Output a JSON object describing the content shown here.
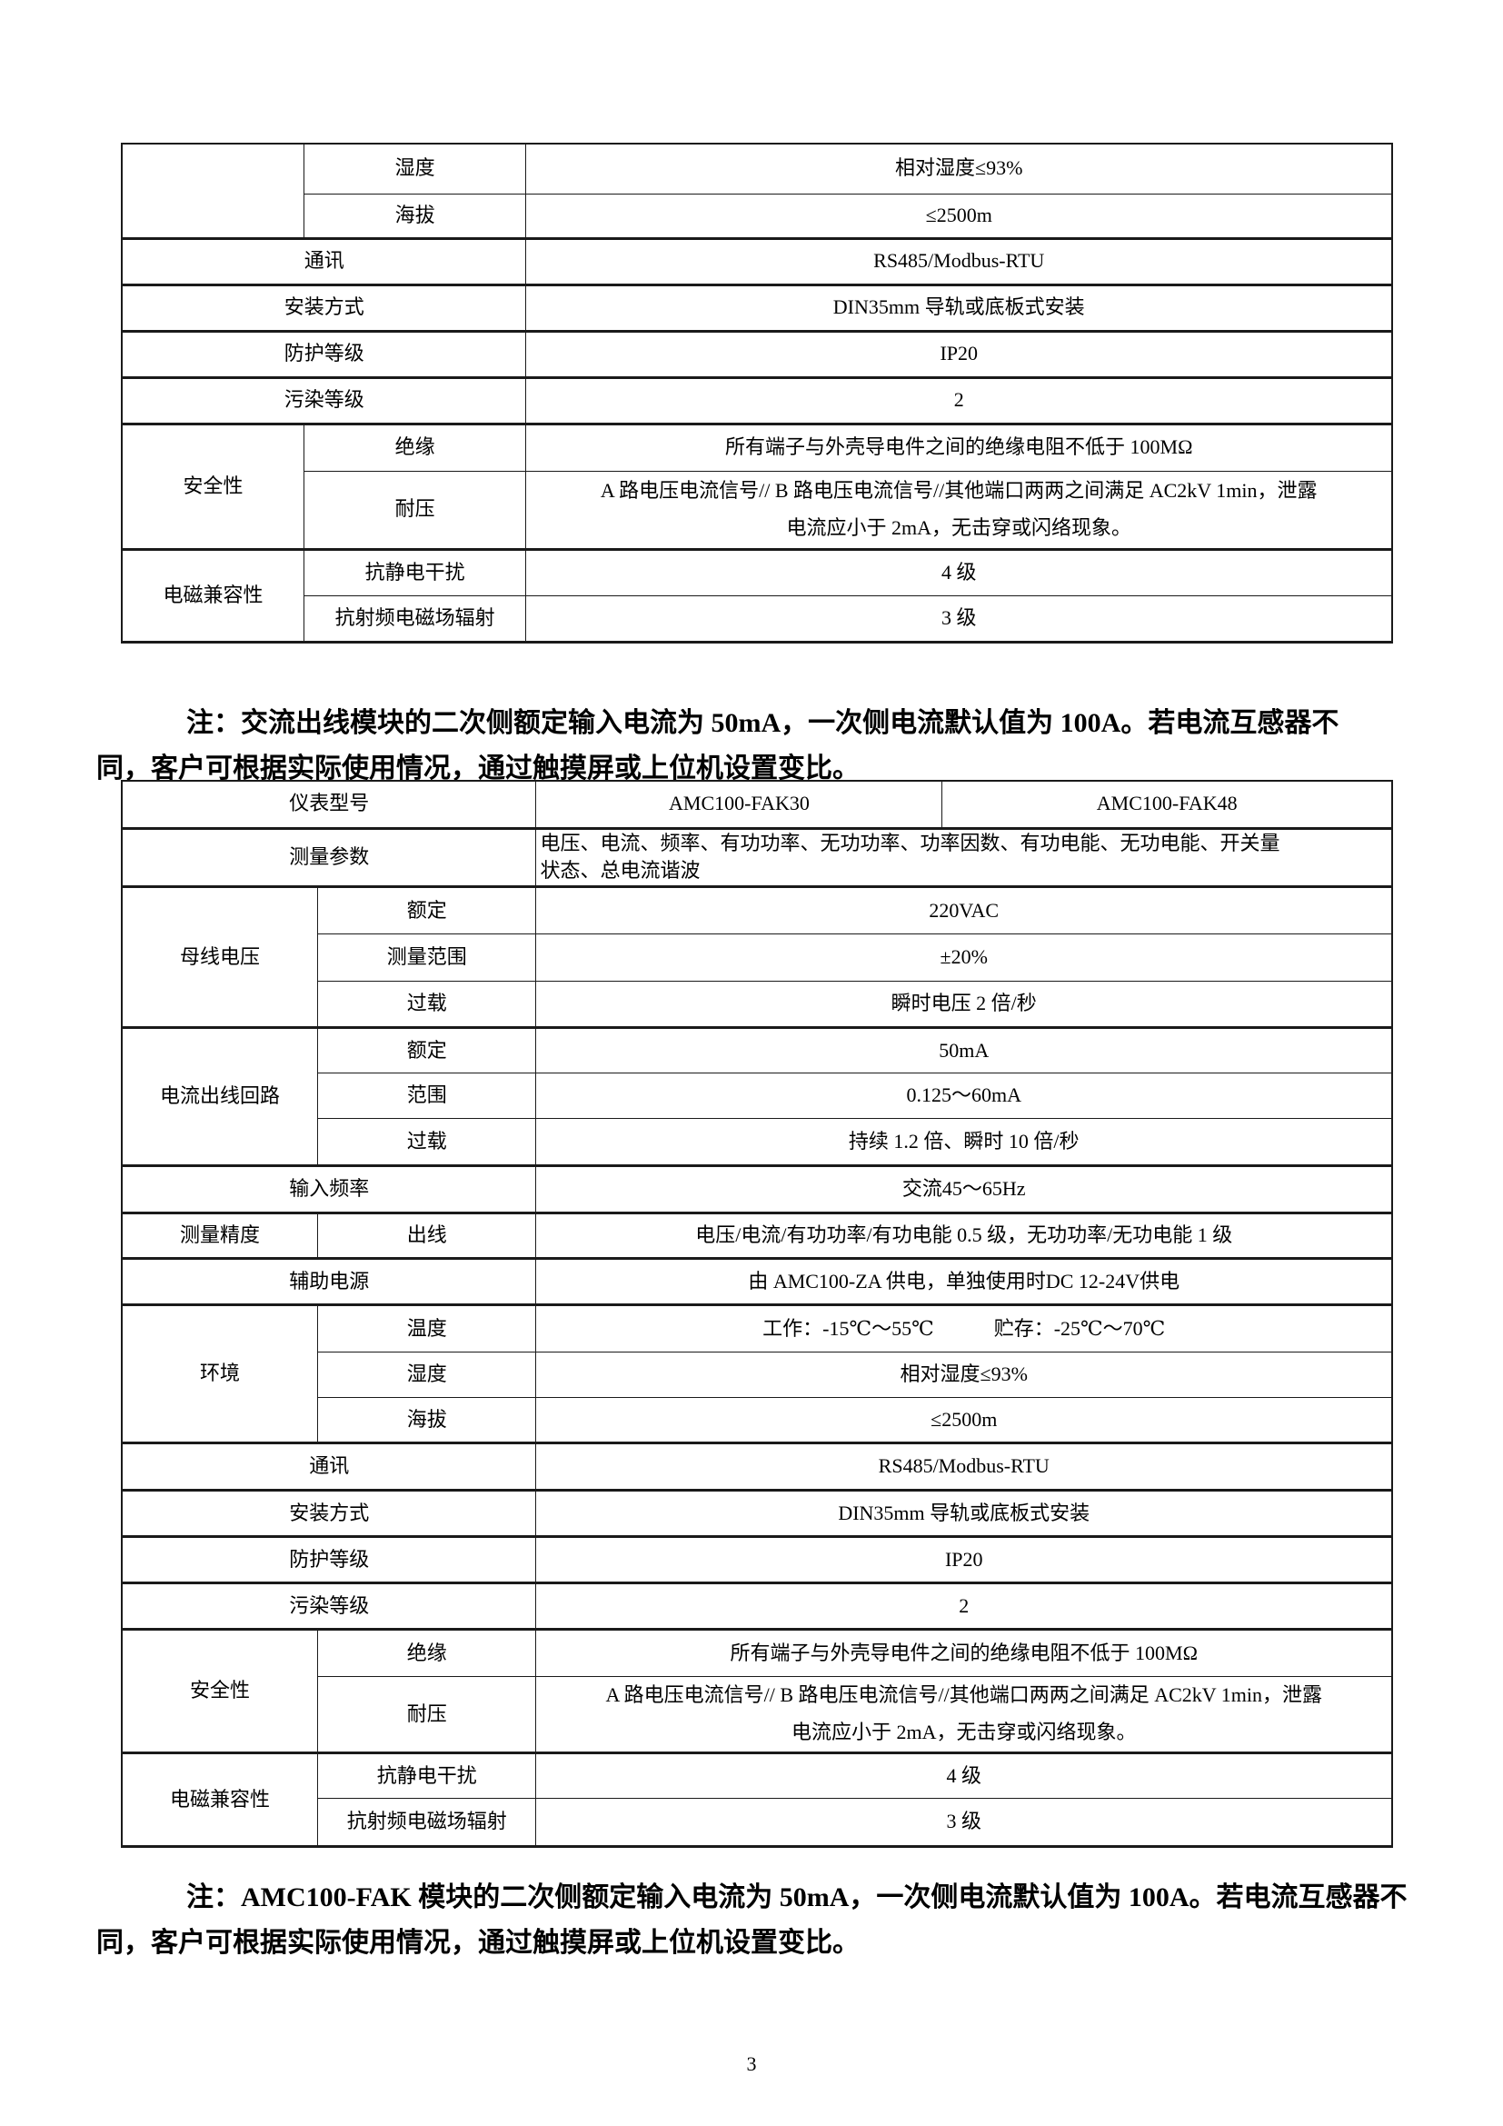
{
  "document": {
    "page_number": "3",
    "background_color": "#ffffff",
    "border_color": "#1a1a1a",
    "text_color": "#000000",
    "notes": {
      "note1": "注：交流出线模块的二次侧额定输入电流为 50mA，一次侧电流默认值为 100A。若电流互感器不\n同，客户可根据实际使用情况，通过触摸屏或上位机设置变比。",
      "note2": "注：AMC100-FAK 模块的二次侧额定输入电流为 50mA，一次侧电流默认值为 100A。若电流互感器不\n同，客户可根据实际使用情况，通过触摸屏或上位机设置变比。"
    }
  },
  "tables": [
    {
      "name": "spec-table-continuation",
      "columns": [
        200,
        244,
        951
      ],
      "rows": [
        {
          "h": 55,
          "thick": false,
          "cells": [
            {
              "t": "",
              "rs": 2
            },
            {
              "t": "湿度"
            },
            {
              "t": "相对湿度≤93%"
            }
          ]
        },
        {
          "h": 49,
          "thick": true,
          "cells": [
            {
              "t": "海拔"
            },
            {
              "t": "≤2500m"
            }
          ]
        },
        {
          "h": 51,
          "thick": true,
          "cells": [
            {
              "t": "通讯",
              "cs": 2
            },
            {
              "t": "RS485/Modbus-RTU"
            }
          ]
        },
        {
          "h": 51,
          "thick": true,
          "cells": [
            {
              "t": "安装方式",
              "cs": 2
            },
            {
              "t": "DIN35mm 导轨或底板式安装"
            }
          ]
        },
        {
          "h": 51,
          "thick": true,
          "cells": [
            {
              "t": "防护等级",
              "cs": 2
            },
            {
              "t": "IP20"
            }
          ]
        },
        {
          "h": 51,
          "thick": true,
          "cells": [
            {
              "t": "污染等级",
              "cs": 2
            },
            {
              "t": "2"
            }
          ]
        },
        {
          "h": 52,
          "thick": false,
          "cells": [
            {
              "t": "安全性",
              "rs": 2
            },
            {
              "t": "绝缘"
            },
            {
              "t": "所有端子与外壳导电件之间的绝缘电阻不低于 100MΩ"
            }
          ]
        },
        {
          "h": 86,
          "thick": true,
          "cells": [
            {
              "t": "耐压"
            },
            {
              "t": "A 路电压电流信号// B 路电压电流信号//其他端口两两之间满足 AC2kV 1min，泄露\n电流应小于 2mA，无击穿或闪络现象。",
              "cls": "loose"
            }
          ]
        },
        {
          "h": 51,
          "thick": false,
          "cells": [
            {
              "t": "电磁兼容性",
              "rs": 2
            },
            {
              "t": "抗静电干扰"
            },
            {
              "t": "4 级"
            }
          ]
        },
        {
          "h": 51,
          "thick": true,
          "cells": [
            {
              "t": "抗射频电磁场辐射"
            },
            {
              "t": "3 级"
            }
          ]
        }
      ]
    },
    {
      "name": "spec-table-amc100-fak",
      "columns": [
        215,
        240,
        446,
        494
      ],
      "rows": [
        {
          "h": 52,
          "thick": true,
          "cells": [
            {
              "t": "仪表型号",
              "cs": 2
            },
            {
              "t": "AMC100-FAK30"
            },
            {
              "t": "AMC100-FAK48"
            }
          ]
        },
        {
          "h": 63,
          "thick": true,
          "cells": [
            {
              "t": "测量参数",
              "cs": 2
            },
            {
              "t": "电压、电流、频率、有功功率、无功功率、功率因数、有功电能、无功电能、开关量\n状态、总电流谐波",
              "cs": 2,
              "cls": "left"
            }
          ]
        },
        {
          "h": 52,
          "thick": false,
          "cells": [
            {
              "t": "母线电压",
              "rs": 3
            },
            {
              "t": "额定"
            },
            {
              "t": "220VAC",
              "cs": 2
            }
          ]
        },
        {
          "h": 52,
          "thick": false,
          "cells": [
            {
              "t": "测量范围"
            },
            {
              "t": "±20%",
              "cs": 2
            }
          ]
        },
        {
          "h": 51,
          "thick": true,
          "cells": [
            {
              "t": "过载"
            },
            {
              "t": "瞬时电压 2 倍/秒",
              "cs": 2
            }
          ]
        },
        {
          "h": 50,
          "thick": false,
          "cells": [
            {
              "t": "电流出线回路",
              "rs": 3
            },
            {
              "t": "额定"
            },
            {
              "t": "50mA",
              "cs": 2
            }
          ]
        },
        {
          "h": 50,
          "thick": false,
          "cells": [
            {
              "t": "范围"
            },
            {
              "t": "0.125～60mA",
              "cs": 2
            }
          ]
        },
        {
          "h": 52,
          "thick": true,
          "cells": [
            {
              "t": "过载"
            },
            {
              "t": "持续 1.2 倍、瞬时 10 倍/秒",
              "cs": 2
            }
          ]
        },
        {
          "h": 52,
          "thick": true,
          "cells": [
            {
              "t": "输入频率",
              "cs": 2
            },
            {
              "t": "交流45～65Hz",
              "cs": 2
            }
          ]
        },
        {
          "h": 50,
          "thick": true,
          "cells": [
            {
              "t": "测量精度"
            },
            {
              "t": "出线"
            },
            {
              "t": "电压/电流/有功功率/有功电能 0.5 级，无功功率/无功电能 1 级",
              "cs": 2
            }
          ]
        },
        {
          "h": 51,
          "thick": true,
          "cells": [
            {
              "t": "辅助电源",
              "cs": 2
            },
            {
              "t": "由 AMC100-ZA 供电，单独使用时DC 12-24V供电",
              "cs": 2
            }
          ]
        },
        {
          "h": 52,
          "thick": false,
          "cells": [
            {
              "t": "环境",
              "rs": 3
            },
            {
              "t": "温度"
            },
            {
              "t": "工作：-15℃～55℃　　　贮存：-25℃～70℃",
              "cs": 2
            }
          ]
        },
        {
          "h": 50,
          "thick": false,
          "cells": [
            {
              "t": "湿度"
            },
            {
              "t": "相对湿度≤93%",
              "cs": 2
            }
          ]
        },
        {
          "h": 50,
          "thick": true,
          "cells": [
            {
              "t": "海拔"
            },
            {
              "t": "≤2500m",
              "cs": 2
            }
          ]
        },
        {
          "h": 52,
          "thick": true,
          "cells": [
            {
              "t": "通讯",
              "cs": 2
            },
            {
              "t": "RS485/Modbus-RTU",
              "cs": 2
            }
          ]
        },
        {
          "h": 51,
          "thick": true,
          "cells": [
            {
              "t": "安装方式",
              "cs": 2
            },
            {
              "t": "DIN35mm 导轨或底板式安装",
              "cs": 2
            }
          ]
        },
        {
          "h": 51,
          "thick": true,
          "cells": [
            {
              "t": "防护等级",
              "cs": 2
            },
            {
              "t": "IP20",
              "cs": 2
            }
          ]
        },
        {
          "h": 51,
          "thick": true,
          "cells": [
            {
              "t": "污染等级",
              "cs": 2
            },
            {
              "t": "2",
              "cs": 2
            }
          ]
        },
        {
          "h": 52,
          "thick": false,
          "cells": [
            {
              "t": "安全性",
              "rs": 2
            },
            {
              "t": "绝缘"
            },
            {
              "t": "所有端子与外壳导电件之间的绝缘电阻不低于 100MΩ",
              "cs": 2
            }
          ]
        },
        {
          "h": 83,
          "thick": true,
          "cells": [
            {
              "t": "耐压"
            },
            {
              "t": "A 路电压电流信号// B 路电压电流信号//其他端口两两之间满足 AC2kV 1min，泄露\n电流应小于 2mA，无击穿或闪络现象。",
              "cs": 2,
              "cls": "loose"
            }
          ]
        },
        {
          "h": 50,
          "thick": false,
          "cells": [
            {
              "t": "电磁兼容性",
              "rs": 2
            },
            {
              "t": "抗静电干扰"
            },
            {
              "t": "4 级",
              "cs": 2
            }
          ]
        },
        {
          "h": 53,
          "thick": true,
          "cells": [
            {
              "t": "抗射频电磁场辐射"
            },
            {
              "t": "3 级",
              "cs": 2
            }
          ]
        }
      ]
    }
  ]
}
